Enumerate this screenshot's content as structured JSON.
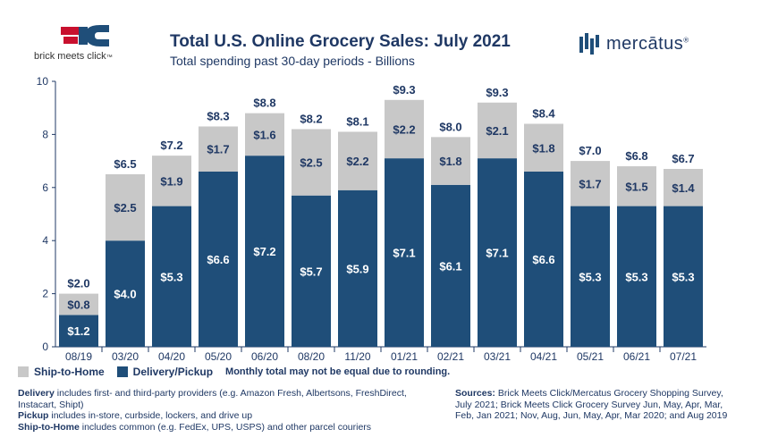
{
  "header": {
    "brand_left": "brick meets click",
    "brand_left_suffix": "™",
    "title": "Total U.S. Online Grocery Sales: July 2021",
    "subtitle": "Total spending past 30-day periods - Billions",
    "brand_right": "mercātus",
    "brand_right_reg": "®"
  },
  "colors": {
    "delivery_pickup": "#1f4e79",
    "ship_to_home": "#c8c8c8",
    "text": "#1f3864",
    "logo_red": "#c8102e",
    "logo_blue": "#1f4e79"
  },
  "legend": {
    "items": [
      {
        "label": "Ship-to-Home",
        "color": "#c8c8c8"
      },
      {
        "label": "Delivery/Pickup",
        "color": "#1f4e79"
      }
    ],
    "note": "Monthly total may not be equal due to rounding."
  },
  "chart_data": {
    "type": "bar",
    "stacked": true,
    "title": "Total U.S. Online Grocery Sales: July 2021",
    "subtitle": "Total spending past 30-day periods - Billions",
    "xlabel": "",
    "ylabel": "",
    "ylim": [
      0,
      10
    ],
    "yticks": [
      0,
      2,
      4,
      6,
      8,
      10
    ],
    "categories": [
      "08/19",
      "03/20",
      "04/20",
      "05/20",
      "06/20",
      "08/20",
      "11/20",
      "01/21",
      "02/21",
      "03/21",
      "04/21",
      "05/21",
      "06/21",
      "07/21"
    ],
    "series": [
      {
        "name": "Delivery/Pickup",
        "color": "#1f4e79",
        "values": [
          1.2,
          4.0,
          5.3,
          6.6,
          7.2,
          5.7,
          5.9,
          7.1,
          6.1,
          7.1,
          6.6,
          5.3,
          5.3,
          5.3
        ],
        "labels": [
          "$1.2",
          "$4.0",
          "$5.3",
          "$6.6",
          "$7.2",
          "$5.7",
          "$5.9",
          "$7.1",
          "$6.1",
          "$7.1",
          "$6.6",
          "$5.3",
          "$5.3",
          "$5.3"
        ]
      },
      {
        "name": "Ship-to-Home",
        "color": "#c8c8c8",
        "values": [
          0.8,
          2.5,
          1.9,
          1.7,
          1.6,
          2.5,
          2.2,
          2.2,
          1.8,
          2.1,
          1.8,
          1.7,
          1.5,
          1.4
        ],
        "labels": [
          "$0.8",
          "$2.5",
          "$1.9",
          "$1.7",
          "$1.6",
          "$2.5",
          "$2.2",
          "$2.2",
          "$1.8",
          "$2.1",
          "$1.8",
          "$1.7",
          "$1.5",
          "$1.4"
        ]
      }
    ],
    "totals": [
      2.0,
      6.5,
      7.2,
      8.3,
      8.8,
      8.2,
      8.1,
      9.3,
      8.0,
      9.3,
      8.4,
      7.0,
      6.8,
      6.7
    ],
    "total_labels": [
      "$2.0",
      "$6.5",
      "$7.2",
      "$8.3",
      "$8.8",
      "$8.2",
      "$8.1",
      "$9.3",
      "$8.0",
      "$9.3",
      "$8.4",
      "$7.0",
      "$6.8",
      "$6.7"
    ],
    "grid": false,
    "legend_position": "bottom-left"
  },
  "footnotes": {
    "delivery_term": "Delivery",
    "delivery_text": " includes first- and third-party providers (e.g. Amazon Fresh, Albertsons, FreshDirect, Instacart, Shipt)",
    "pickup_term": "Pickup",
    "pickup_text": " includes in-store, curbside, lockers, and drive up",
    "ship_term": "Ship-to-Home",
    "ship_text": " includes common (e.g. FedEx, UPS, USPS) and other parcel couriers"
  },
  "sources": {
    "term": "Sources:",
    "text": " Brick Meets Click/Mercatus Grocery Shopping Survey, July 2021; Brick Meets Click Grocery Survey Jun, May, Apr, Mar, Feb, Jan 2021; Nov, Aug, Jun, May, Apr, Mar 2020; and Aug 2019"
  }
}
